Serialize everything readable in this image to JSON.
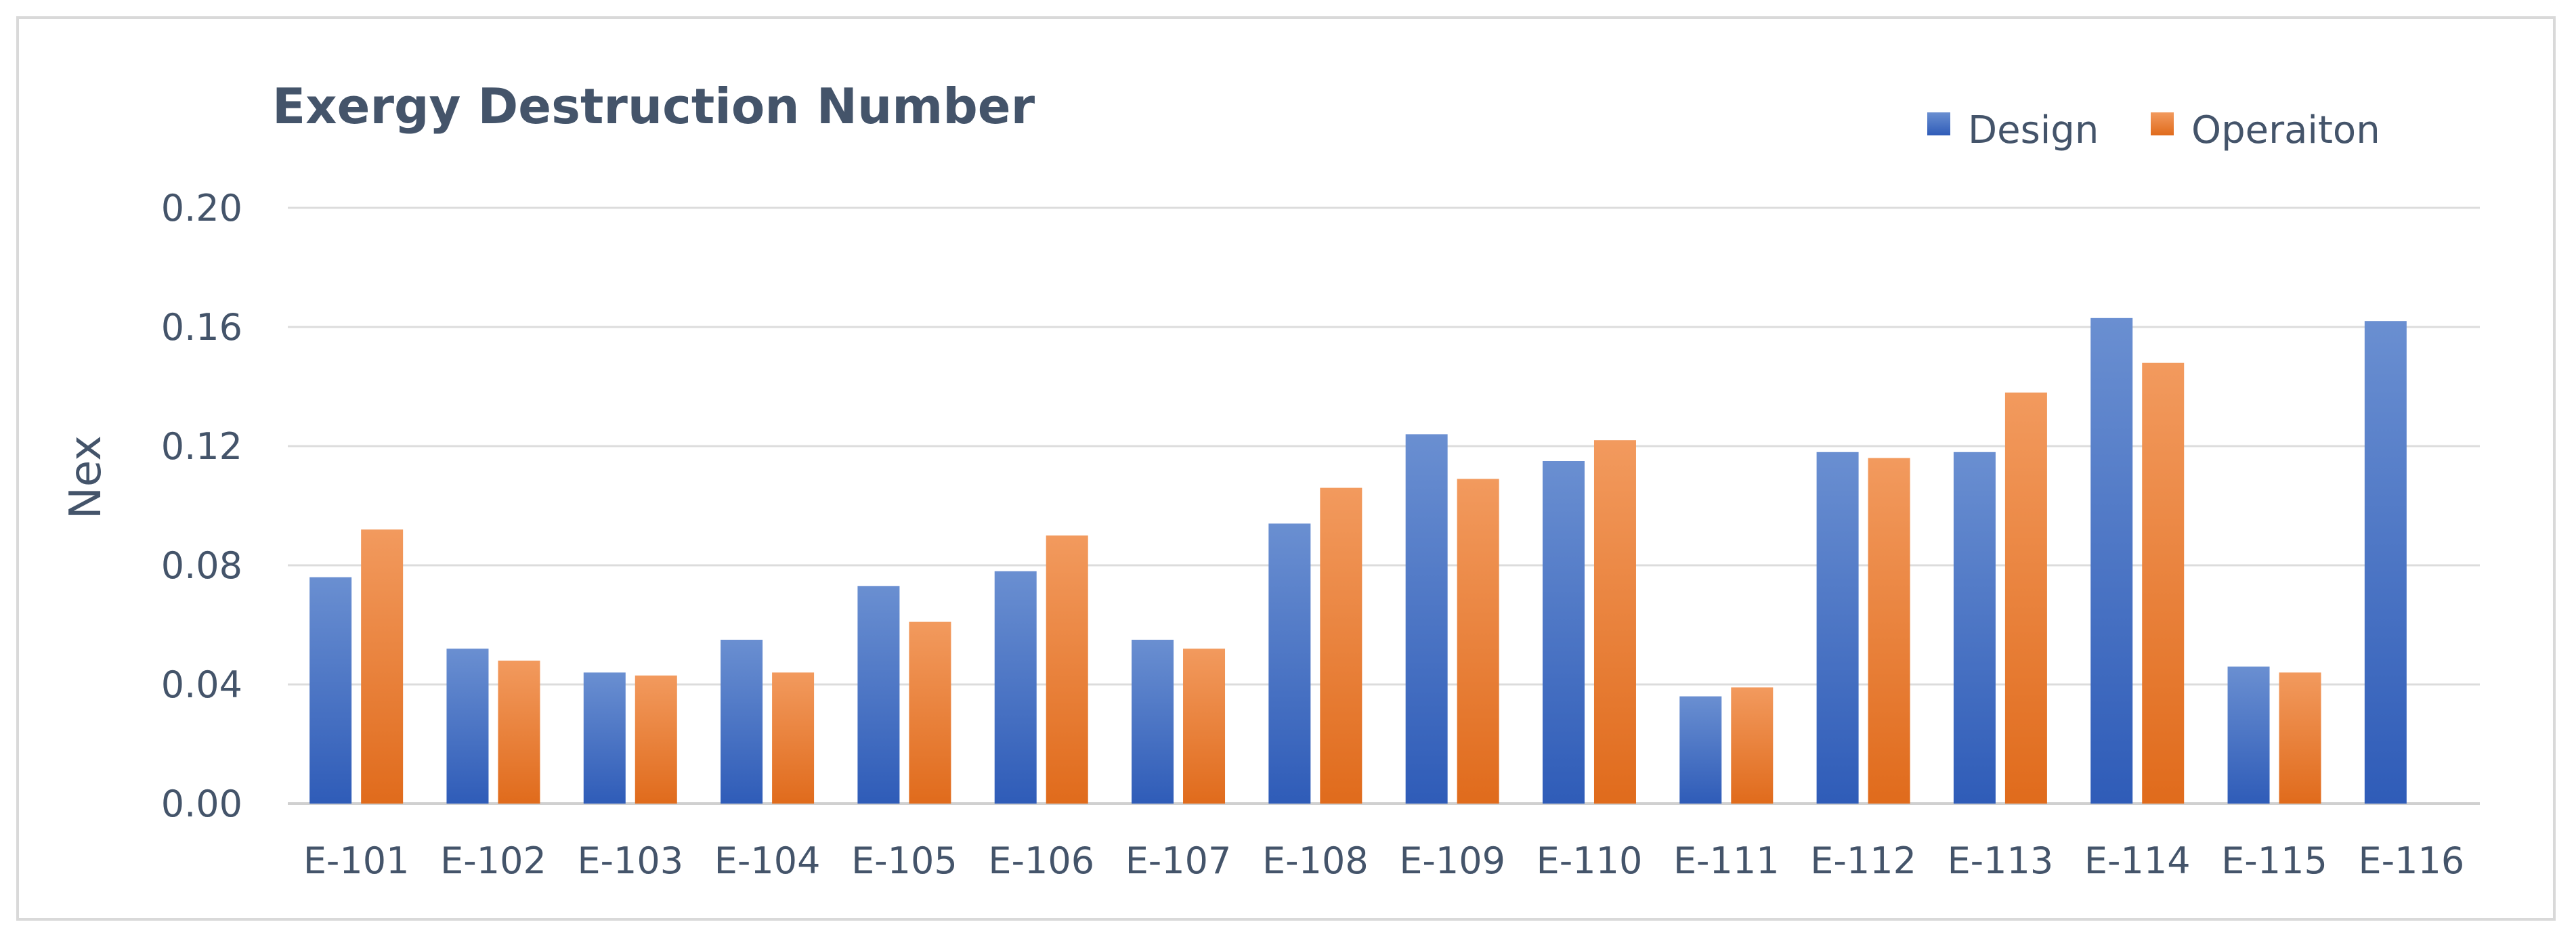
{
  "chart_data": {
    "type": "bar",
    "title": "Exergy Destruction Number",
    "xlabel": "",
    "ylabel": "Nex",
    "ylim": [
      0,
      0.2
    ],
    "yticks": [
      "0.00",
      "0.04",
      "0.08",
      "0.12",
      "0.16",
      "0.20"
    ],
    "grid": true,
    "legend_position": "top-right",
    "categories": [
      "E-101",
      "E-102",
      "E-103",
      "E-104",
      "E-105",
      "E-106",
      "E-107",
      "E-108",
      "E-109",
      "E-110",
      "E-111",
      "E-112",
      "E-113",
      "E-114",
      "E-115",
      "E-116"
    ],
    "series": [
      {
        "name": "Design",
        "color": "#4472c4",
        "values": [
          0.076,
          0.052,
          0.044,
          0.055,
          0.073,
          0.078,
          0.055,
          0.094,
          0.124,
          0.115,
          0.036,
          0.118,
          0.118,
          0.163,
          0.046,
          0.162
        ]
      },
      {
        "name": "Operaiton",
        "color": "#ed7d31",
        "values": [
          0.092,
          0.048,
          0.043,
          0.044,
          0.061,
          0.09,
          0.052,
          0.106,
          0.109,
          0.122,
          0.039,
          0.116,
          0.138,
          0.148,
          0.044,
          null
        ]
      }
    ]
  }
}
